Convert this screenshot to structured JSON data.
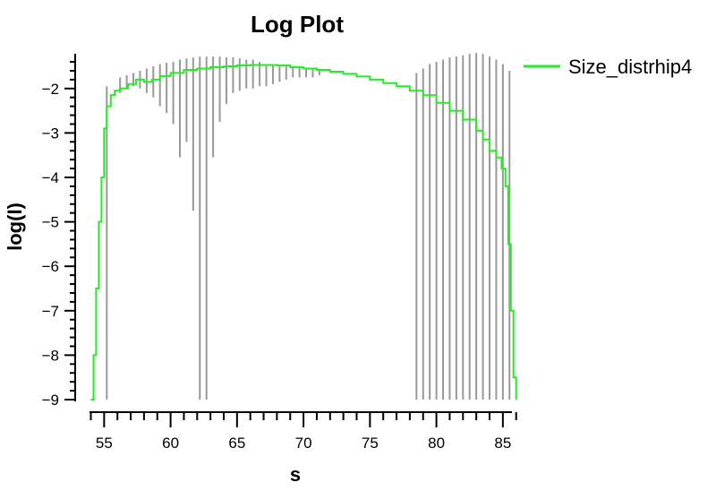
{
  "chart_data": {
    "type": "line",
    "title": "Log Plot",
    "xlabel": "s",
    "ylabel": "log(I)",
    "xlim": [
      54,
      86
    ],
    "ylim": [
      -9,
      -1.2
    ],
    "xticks": [
      55,
      60,
      65,
      70,
      75,
      80,
      85
    ],
    "yticks": [
      -9,
      -8,
      -7,
      -6,
      -5,
      -4,
      -3,
      -2
    ],
    "xtick_labels": [
      "55",
      "60",
      "65",
      "70",
      "75",
      "80",
      "85"
    ],
    "ytick_labels": [
      "−9",
      "−8",
      "−7",
      "−6",
      "−5",
      "−4",
      "−3",
      "−2"
    ],
    "legend": {
      "position": "top-right",
      "entries": [
        "Size_distrhip4"
      ]
    },
    "grid": false,
    "series": [
      {
        "name": "Size_distrhip4",
        "color": "#22ee22",
        "style": "step",
        "x": [
          54.0,
          54.2,
          54.4,
          54.6,
          54.8,
          55.0,
          55.2,
          55.5,
          55.8,
          56.2,
          56.8,
          57.4,
          58.0,
          58.6,
          59.2,
          60.0,
          61.0,
          62.0,
          63.0,
          64.0,
          65.0,
          66.0,
          67.0,
          68.0,
          69.0,
          70.0,
          71.0,
          72.0,
          73.0,
          74.0,
          75.0,
          76.0,
          77.0,
          78.0,
          79.0,
          80.0,
          81.0,
          82.0,
          83.0,
          83.5,
          84.0,
          84.5,
          84.9,
          85.2,
          85.4,
          85.6,
          85.8,
          86.0
        ],
        "y": [
          -9.0,
          -8.0,
          -6.5,
          -5.0,
          -4.0,
          -2.9,
          -2.4,
          -2.15,
          -2.05,
          -2.0,
          -1.9,
          -1.8,
          -1.85,
          -1.8,
          -1.72,
          -1.65,
          -1.58,
          -1.55,
          -1.52,
          -1.5,
          -1.48,
          -1.47,
          -1.47,
          -1.48,
          -1.52,
          -1.55,
          -1.58,
          -1.62,
          -1.67,
          -1.73,
          -1.8,
          -1.88,
          -1.95,
          -2.05,
          -2.15,
          -2.32,
          -2.5,
          -2.7,
          -2.95,
          -3.15,
          -3.4,
          -3.55,
          -3.8,
          -4.2,
          -5.5,
          -7.0,
          -8.5,
          -9.0
        ]
      }
    ],
    "error_bars": {
      "color": "#999999",
      "x": [
        55.2,
        56.2,
        56.7,
        57.2,
        57.7,
        58.2,
        58.7,
        59.2,
        59.7,
        60.2,
        60.7,
        61.2,
        61.7,
        62.2,
        62.7,
        63.2,
        63.7,
        64.2,
        64.7,
        65.2,
        65.7,
        66.2,
        66.7,
        67.2,
        67.7,
        68.2,
        68.7,
        69.2,
        69.7,
        70.2,
        70.7,
        71.2,
        78.5,
        79.0,
        79.5,
        80.0,
        80.5,
        81.0,
        81.5,
        82.0,
        82.5,
        83.0,
        83.5,
        84.0,
        84.5,
        85.0,
        85.5
      ],
      "lower": [
        -9.0,
        -2.1,
        -2.0,
        -1.95,
        -2.0,
        -2.1,
        -2.2,
        -2.4,
        -2.55,
        -2.8,
        -3.55,
        -3.2,
        -4.75,
        -9.0,
        -9.0,
        -3.55,
        -2.75,
        -2.35,
        -2.1,
        -2.05,
        -2.0,
        -2.0,
        -1.95,
        -1.95,
        -1.9,
        -1.85,
        -1.8,
        -1.75,
        -1.75,
        -1.75,
        -1.75,
        -1.7,
        -9.0,
        -9.0,
        -9.0,
        -9.0,
        -9.0,
        -9.0,
        -9.0,
        -9.0,
        -9.0,
        -9.0,
        -9.0,
        -9.0,
        -9.0,
        -9.0,
        -9.0
      ],
      "upper": [
        -1.95,
        -1.75,
        -1.7,
        -1.65,
        -1.6,
        -1.55,
        -1.5,
        -1.45,
        -1.42,
        -1.4,
        -1.35,
        -1.32,
        -1.3,
        -1.28,
        -1.28,
        -1.28,
        -1.28,
        -1.3,
        -1.3,
        -1.32,
        -1.35,
        -1.35,
        -1.4,
        -1.45,
        -1.45,
        -1.48,
        -1.5,
        -1.5,
        -1.52,
        -1.55,
        -1.55,
        -1.58,
        -1.65,
        -1.55,
        -1.45,
        -1.4,
        -1.35,
        -1.3,
        -1.28,
        -1.25,
        -1.22,
        -1.2,
        -1.22,
        -1.28,
        -1.35,
        -1.45,
        -1.6
      ]
    }
  }
}
